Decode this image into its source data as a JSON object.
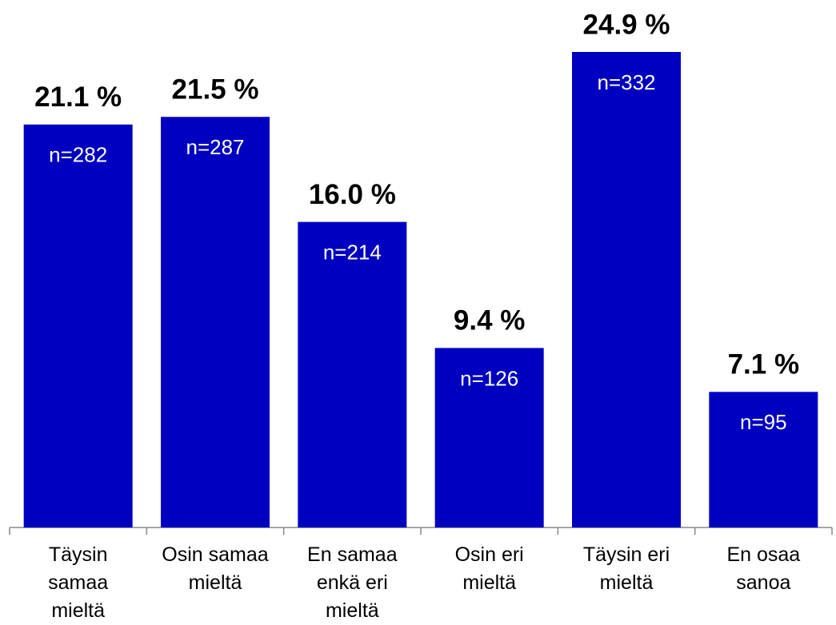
{
  "chart_data": {
    "type": "bar",
    "categories": [
      "Täysin\nsamaa\nmieltä",
      "Osin samaa\nmieltä",
      "En samaa\nenkä eri\nmieltä",
      "Osin eri\nmieltä",
      "Täysin eri\nmieltä",
      "En osaa\nsanoa"
    ],
    "values": [
      21.1,
      21.5,
      16.0,
      9.4,
      24.9,
      7.1
    ],
    "value_labels": [
      "21.1 %",
      "21.5 %",
      "16.0 %",
      "9.4 %",
      "24.9 %",
      "7.1 %"
    ],
    "count_labels": [
      "n=282",
      "n=287",
      "n=214",
      "n=126",
      "n=332",
      "n=95"
    ],
    "color": "#0000c0"
  }
}
